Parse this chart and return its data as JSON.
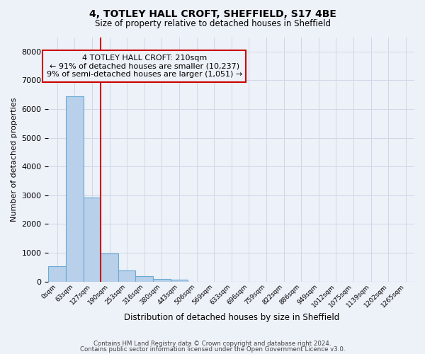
{
  "title_line1": "4, TOTLEY HALL CROFT, SHEFFIELD, S17 4BE",
  "title_line2": "Size of property relative to detached houses in Sheffield",
  "xlabel": "Distribution of detached houses by size in Sheffield",
  "ylabel": "Number of detached properties",
  "bar_labels": [
    "0sqm",
    "63sqm",
    "127sqm",
    "190sqm",
    "253sqm",
    "316sqm",
    "380sqm",
    "443sqm",
    "506sqm",
    "569sqm",
    "633sqm",
    "696sqm",
    "759sqm",
    "822sqm",
    "886sqm",
    "949sqm",
    "1012sqm",
    "1075sqm",
    "1139sqm",
    "1202sqm",
    "1265sqm"
  ],
  "bar_values": [
    530,
    6440,
    2920,
    970,
    370,
    175,
    90,
    55,
    0,
    0,
    0,
    0,
    0,
    0,
    0,
    0,
    0,
    0,
    0,
    0,
    0
  ],
  "bar_color": "#b8d0ea",
  "bar_edge_color": "#6aaad4",
  "ylim": [
    0,
    8500
  ],
  "yticks": [
    0,
    1000,
    2000,
    3000,
    4000,
    5000,
    6000,
    7000,
    8000
  ],
  "grid_color": "#d0d8e8",
  "bg_color": "#edf1f8",
  "annotation_line1": "4 TOTLEY HALL CROFT: 210sqm",
  "annotation_line2": "← 91% of detached houses are smaller (10,237)",
  "annotation_line3": "9% of semi-detached houses are larger (1,051) →",
  "vline_position": 3,
  "vline_color": "#cc0000",
  "footer_line1": "Contains HM Land Registry data © Crown copyright and database right 2024.",
  "footer_line2": "Contains public sector information licensed under the Open Government Licence v3.0."
}
